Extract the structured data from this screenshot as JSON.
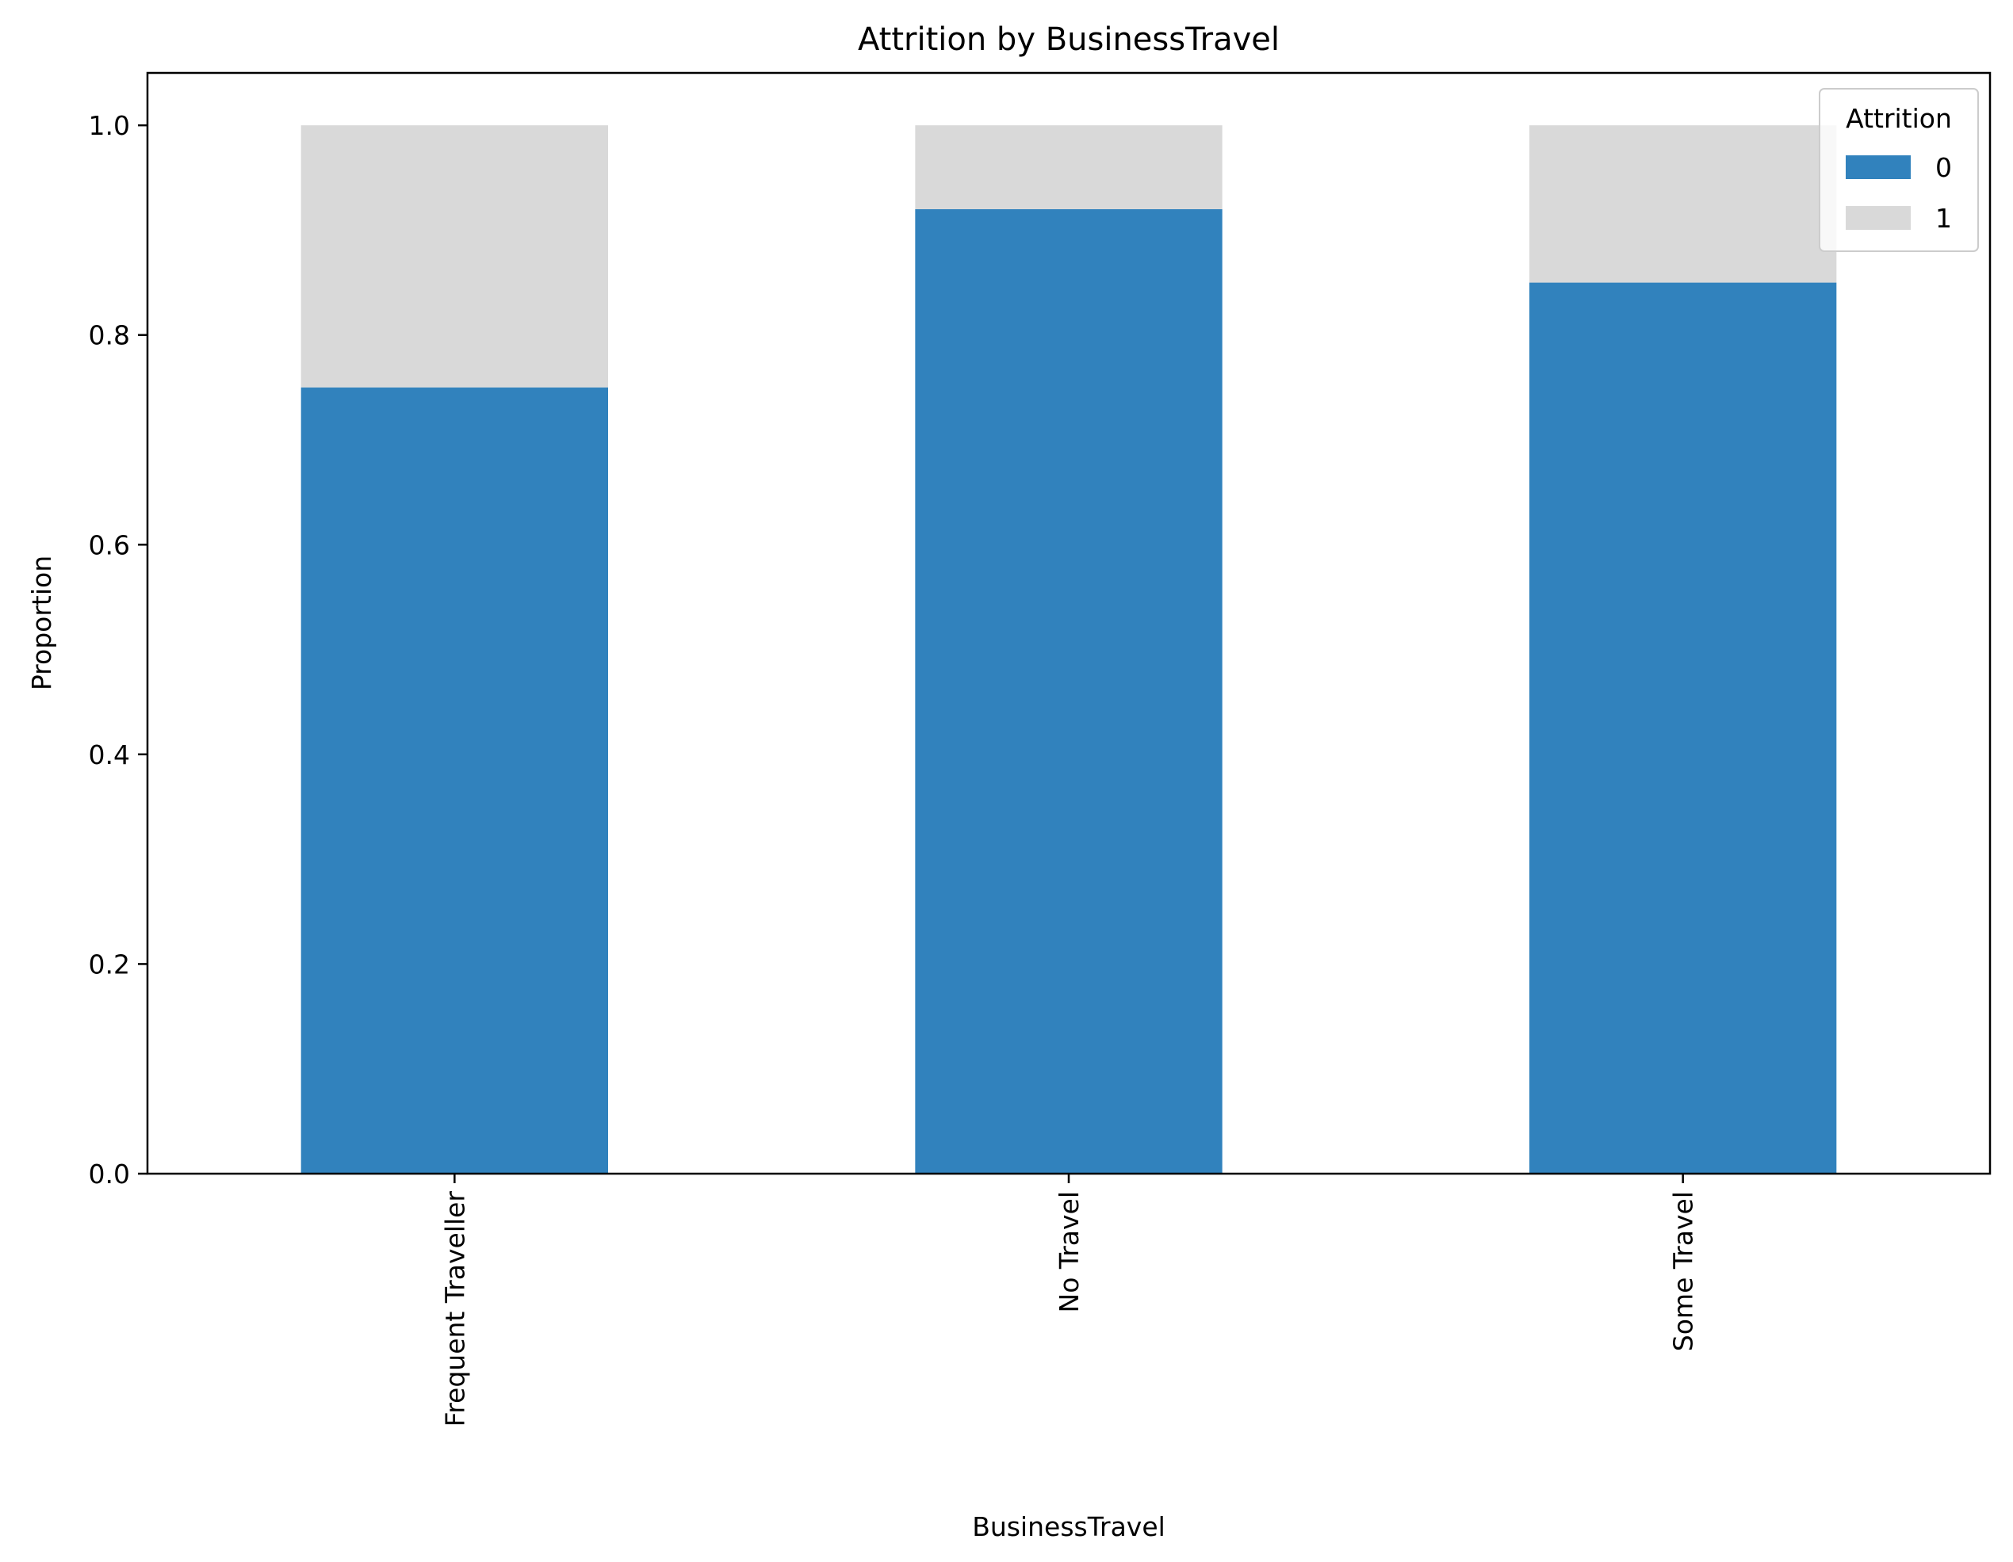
{
  "chart_data": {
    "type": "bar",
    "stacked": true,
    "title": "Attrition by BusinessTravel",
    "xlabel": "BusinessTravel",
    "ylabel": "Proportion",
    "categories": [
      "Frequent Traveller",
      "No Travel",
      "Some Travel"
    ],
    "ylim": [
      0,
      1.05
    ],
    "yticks": [
      "0.0",
      "0.2",
      "0.4",
      "0.6",
      "0.8",
      "1.0"
    ],
    "grid": false,
    "legend": {
      "title": "Attrition",
      "placement": "top-right"
    },
    "series": [
      {
        "name": "0",
        "values": [
          0.75,
          0.92,
          0.85
        ],
        "color": "#3182bd"
      },
      {
        "name": "1",
        "values": [
          0.25,
          0.08,
          0.15
        ],
        "color": "#d9d9d9"
      }
    ]
  }
}
